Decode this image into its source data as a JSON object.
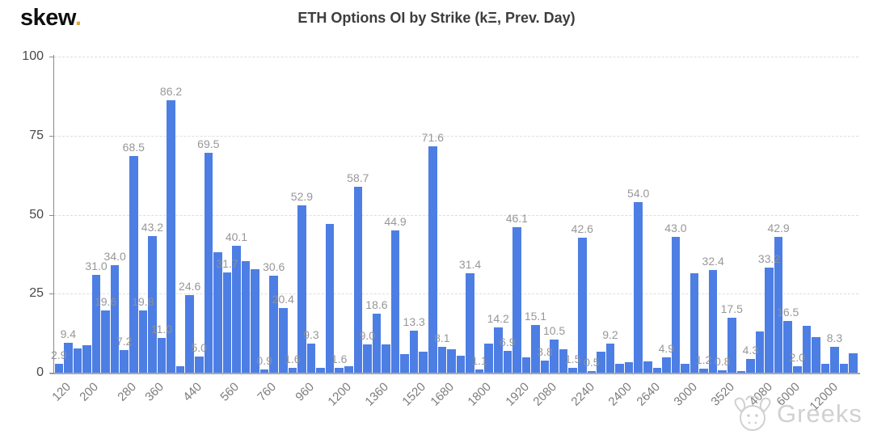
{
  "header": {
    "logo_text": "skew",
    "logo_dot": ".",
    "title": "ETH Options OI by Strike (kΞ, Prev. Day)"
  },
  "watermark": {
    "icon": "cow-face-icon",
    "text": "Greeks"
  },
  "colors": {
    "bar": "#4d7ee4",
    "data_label": "#919191",
    "y_axis_text": "#484848",
    "x_axis_text": "#7d7d7d",
    "grid": "#dedede",
    "axis_line": "#8a8a8a",
    "logo_dot": "#e6a53c",
    "watermark": "#c9c9c9"
  },
  "chart_data": {
    "type": "bar",
    "title": "ETH Options OI by Strike (kΞ, Prev. Day)",
    "xlabel": "",
    "ylabel": "",
    "ylim": [
      0,
      100
    ],
    "yticks": [
      0,
      25,
      50,
      75,
      100
    ],
    "grid": "horizontal-dashed",
    "legend": "none",
    "bars": [
      {
        "value": 2.9,
        "label": "2.9"
      },
      {
        "value": 9.4,
        "label": "9.4"
      },
      {
        "value": 7.8,
        "label": ""
      },
      {
        "value": 8.8,
        "label": ""
      },
      {
        "value": 31.0,
        "label": "31.0"
      },
      {
        "value": 19.6,
        "label": "19.6"
      },
      {
        "value": 34.0,
        "label": "34.0"
      },
      {
        "value": 7.2,
        "label": "7.2"
      },
      {
        "value": 68.5,
        "label": "68.5"
      },
      {
        "value": 19.8,
        "label": "19.8"
      },
      {
        "value": 43.2,
        "label": "43.2"
      },
      {
        "value": 11.0,
        "label": "11.0"
      },
      {
        "value": 86.2,
        "label": "86.2"
      },
      {
        "value": 2.1,
        "label": ""
      },
      {
        "value": 24.6,
        "label": "24.6"
      },
      {
        "value": 5.0,
        "label": "5.0"
      },
      {
        "value": 69.5,
        "label": "69.5"
      },
      {
        "value": 38.0,
        "label": ""
      },
      {
        "value": 31.7,
        "label": "31.7"
      },
      {
        "value": 40.1,
        "label": "40.1"
      },
      {
        "value": 35.3,
        "label": ""
      },
      {
        "value": 32.7,
        "label": ""
      },
      {
        "value": 0.9,
        "label": "0.9"
      },
      {
        "value": 30.6,
        "label": "30.6"
      },
      {
        "value": 20.4,
        "label": "20.4"
      },
      {
        "value": 1.6,
        "label": "1.6"
      },
      {
        "value": 52.9,
        "label": "52.9"
      },
      {
        "value": 9.3,
        "label": "9.3"
      },
      {
        "value": 1.5,
        "label": ""
      },
      {
        "value": 47.0,
        "label": ""
      },
      {
        "value": 1.6,
        "label": "1.6"
      },
      {
        "value": 2.0,
        "label": ""
      },
      {
        "value": 58.7,
        "label": "58.7"
      },
      {
        "value": 9.0,
        "label": "9.0"
      },
      {
        "value": 18.6,
        "label": "18.6"
      },
      {
        "value": 9.0,
        "label": ""
      },
      {
        "value": 44.9,
        "label": "44.9"
      },
      {
        "value": 6.0,
        "label": ""
      },
      {
        "value": 13.3,
        "label": "13.3"
      },
      {
        "value": 6.6,
        "label": ""
      },
      {
        "value": 71.6,
        "label": "71.6"
      },
      {
        "value": 8.1,
        "label": "8.1"
      },
      {
        "value": 7.5,
        "label": ""
      },
      {
        "value": 5.4,
        "label": ""
      },
      {
        "value": 31.4,
        "label": "31.4"
      },
      {
        "value": 1.1,
        "label": "1.1"
      },
      {
        "value": 9.2,
        "label": ""
      },
      {
        "value": 14.2,
        "label": "14.2"
      },
      {
        "value": 6.9,
        "label": "6.9"
      },
      {
        "value": 46.1,
        "label": "46.1"
      },
      {
        "value": 4.9,
        "label": ""
      },
      {
        "value": 15.1,
        "label": "15.1"
      },
      {
        "value": 3.8,
        "label": "3.8"
      },
      {
        "value": 10.5,
        "label": "10.5"
      },
      {
        "value": 7.5,
        "label": ""
      },
      {
        "value": 1.5,
        "label": "1.5"
      },
      {
        "value": 42.6,
        "label": "42.6"
      },
      {
        "value": 0.5,
        "label": "0.5"
      },
      {
        "value": 6.6,
        "label": ""
      },
      {
        "value": 9.2,
        "label": "9.2"
      },
      {
        "value": 2.8,
        "label": ""
      },
      {
        "value": 3.3,
        "label": ""
      },
      {
        "value": 54.0,
        "label": "54.0"
      },
      {
        "value": 3.6,
        "label": ""
      },
      {
        "value": 1.5,
        "label": ""
      },
      {
        "value": 4.9,
        "label": "4.9"
      },
      {
        "value": 43.0,
        "label": "43.0"
      },
      {
        "value": 2.8,
        "label": ""
      },
      {
        "value": 31.5,
        "label": ""
      },
      {
        "value": 1.2,
        "label": "1.2"
      },
      {
        "value": 32.4,
        "label": "32.4"
      },
      {
        "value": 0.8,
        "label": "0.8"
      },
      {
        "value": 17.5,
        "label": "17.5"
      },
      {
        "value": 0.5,
        "label": ""
      },
      {
        "value": 4.3,
        "label": "4.3"
      },
      {
        "value": 13.0,
        "label": ""
      },
      {
        "value": 33.2,
        "label": "33.2"
      },
      {
        "value": 42.9,
        "label": "42.9"
      },
      {
        "value": 16.5,
        "label": "16.5"
      },
      {
        "value": 2.0,
        "label": "2.0"
      },
      {
        "value": 14.8,
        "label": ""
      },
      {
        "value": 11.3,
        "label": ""
      },
      {
        "value": 2.8,
        "label": ""
      },
      {
        "value": 8.3,
        "label": "8.3"
      },
      {
        "value": 2.8,
        "label": ""
      },
      {
        "value": 6.2,
        "label": ""
      }
    ],
    "xticks": [
      {
        "label": "120",
        "bar_index": 0
      },
      {
        "label": "200",
        "bar_index": 3
      },
      {
        "label": "280",
        "bar_index": 7
      },
      {
        "label": "360",
        "bar_index": 10
      },
      {
        "label": "440",
        "bar_index": 14
      },
      {
        "label": "560",
        "bar_index": 18
      },
      {
        "label": "760",
        "bar_index": 22
      },
      {
        "label": "960",
        "bar_index": 26
      },
      {
        "label": "1200",
        "bar_index": 30
      },
      {
        "label": "1360",
        "bar_index": 34
      },
      {
        "label": "1520",
        "bar_index": 38
      },
      {
        "label": "1680",
        "bar_index": 41
      },
      {
        "label": "1800",
        "bar_index": 45
      },
      {
        "label": "1920",
        "bar_index": 49
      },
      {
        "label": "2080",
        "bar_index": 52
      },
      {
        "label": "2240",
        "bar_index": 56
      },
      {
        "label": "2400",
        "bar_index": 60
      },
      {
        "label": "2640",
        "bar_index": 63
      },
      {
        "label": "3000",
        "bar_index": 67
      },
      {
        "label": "3520",
        "bar_index": 71
      },
      {
        "label": "4080",
        "bar_index": 75
      },
      {
        "label": "6000",
        "bar_index": 78
      },
      {
        "label": "12000",
        "bar_index": 82
      }
    ]
  }
}
